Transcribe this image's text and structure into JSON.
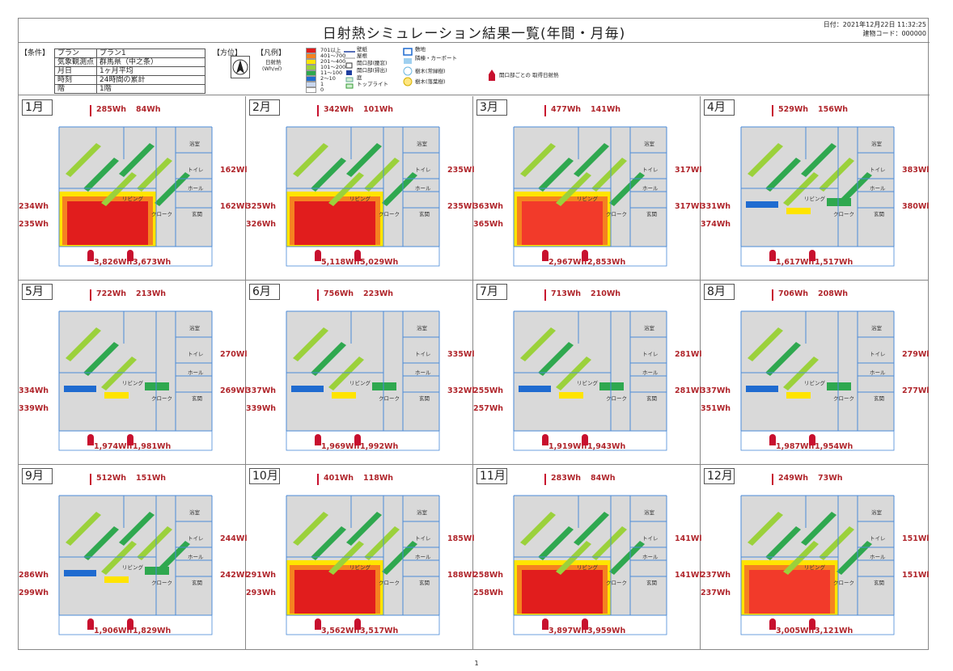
{
  "header": {
    "title": "日射熱シミュレーション結果一覧(年間・月毎)",
    "date": "日付：2021年12月22日 11:32:25",
    "building_code": "建物コード：000000"
  },
  "conditions": {
    "label": "【条件】",
    "rows": [
      {
        "k": "プラン",
        "v": "プラン1"
      },
      {
        "k": "気象観測点",
        "v": "群馬県（中之条）"
      },
      {
        "k": "月日",
        "v": "1ヶ月平均"
      },
      {
        "k": "時刻",
        "v": "24時間の累計"
      },
      {
        "k": "階",
        "v": "1階"
      }
    ]
  },
  "orientation_label": "【方位】",
  "legend": {
    "label": "【凡例】",
    "unit_a": "日射熱",
    "unit_b": "(Wh/㎡)",
    "levels": [
      "701以上",
      "401〜700",
      "201〜400",
      "101〜200",
      "11〜100",
      "2〜10",
      "1",
      "0"
    ],
    "colors": [
      "#e11d1d",
      "#f58220",
      "#ffe400",
      "#9bd13b",
      "#2fa84f",
      "#1f6bd0",
      "#c9d7ef",
      "#ffffff"
    ],
    "symbols": {
      "wall": "壁紙",
      "roof": "屋根",
      "opening_inner": "開口部(腰窓)",
      "opening_outer": "開口部(掃出)",
      "garden": "庭",
      "toplight": "トップライト",
      "site": "敷地",
      "carport": "隣棟・カーポート",
      "tree_evergreen": "樹木(常緑樹)",
      "tree_deciduous": "樹木(落葉樹)",
      "opening_heat": "開口部ごとの 取得日射熱"
    }
  },
  "rooms": {
    "bath": "浴室",
    "toilet": "トイレ",
    "hall": "ホール",
    "living": "リビング",
    "closet": "クローク",
    "entrance": "玄関"
  },
  "months": [
    {
      "label": "1月",
      "top1": "285Wh",
      "top2": "84Wh",
      "r1": "162Wl",
      "r2": "162Wl",
      "l1": "234Wh",
      "l2": "235Wh",
      "b1": "3,826Wh",
      "b2": "3,673Wh",
      "heat": "high"
    },
    {
      "label": "2月",
      "top1": "342Wh",
      "top2": "101Wh",
      "r1": "235Wl",
      "r2": "235Wl",
      "l1": "325Wh",
      "l2": "326Wh",
      "b1": "5,118Wh",
      "b2": "5,029Wh",
      "heat": "high"
    },
    {
      "label": "3月",
      "top1": "477Wh",
      "top2": "141Wh",
      "r1": "317Wl",
      "r2": "317Wl",
      "l1": "363Wh",
      "l2": "365Wh",
      "b1": "2,967Wh",
      "b2": "2,853Wh",
      "heat": "mid"
    },
    {
      "label": "4月",
      "top1": "529Wh",
      "top2": "156Wh",
      "r1": "383Wl",
      "r2": "380Wl",
      "l1": "331Wh",
      "l2": "374Wh",
      "b1": "1,617Wh",
      "b2": "1,517Wh",
      "heat": "low"
    },
    {
      "label": "5月",
      "top1": "722Wh",
      "top2": "213Wh",
      "r1": "270Wl",
      "r2": "269Wl",
      "l1": "334Wh",
      "l2": "339Wh",
      "b1": "1,974Wh",
      "b2": "1,981Wh",
      "heat": "vlow"
    },
    {
      "label": "6月",
      "top1": "756Wh",
      "top2": "223Wh",
      "r1": "335Wl",
      "r2": "332Wl",
      "l1": "337Wh",
      "l2": "339Wh",
      "b1": "1,969Wh",
      "b2": "1,992Wh",
      "heat": "vlow"
    },
    {
      "label": "7月",
      "top1": "713Wh",
      "top2": "210Wh",
      "r1": "281Wl",
      "r2": "281Wl",
      "l1": "255Wh",
      "l2": "257Wh",
      "b1": "1,919Wh",
      "b2": "1,943Wh",
      "heat": "vlow"
    },
    {
      "label": "8月",
      "top1": "706Wh",
      "top2": "208Wh",
      "r1": "279Wl",
      "r2": "277Wl",
      "l1": "337Wh",
      "l2": "351Wh",
      "b1": "1,987Wh",
      "b2": "1,954Wh",
      "heat": "vlow"
    },
    {
      "label": "9月",
      "top1": "512Wh",
      "top2": "151Wh",
      "r1": "244Wl",
      "r2": "242Wl",
      "l1": "286Wh",
      "l2": "299Wh",
      "b1": "1,906Wh",
      "b2": "1,829Wh",
      "heat": "low"
    },
    {
      "label": "10月",
      "top1": "401Wh",
      "top2": "118Wh",
      "r1": "185Wl",
      "r2": "188Wl",
      "l1": "291Wh",
      "l2": "293Wh",
      "b1": "3,562Wh",
      "b2": "3,517Wh",
      "heat": "high"
    },
    {
      "label": "11月",
      "top1": "283Wh",
      "top2": "84Wh",
      "r1": "141Wl",
      "r2": "141Wl",
      "l1": "258Wh",
      "l2": "258Wh",
      "b1": "3,897Wh",
      "b2": "3,959Wh",
      "heat": "high"
    },
    {
      "label": "12月",
      "top1": "249Wh",
      "top2": "73Wh",
      "r1": "151Wl",
      "r2": "151Wl",
      "l1": "237Wh",
      "l2": "237Wh",
      "b1": "3,005Wh",
      "b2": "3,121Wh",
      "heat": "mid"
    }
  ],
  "page_number": "1"
}
